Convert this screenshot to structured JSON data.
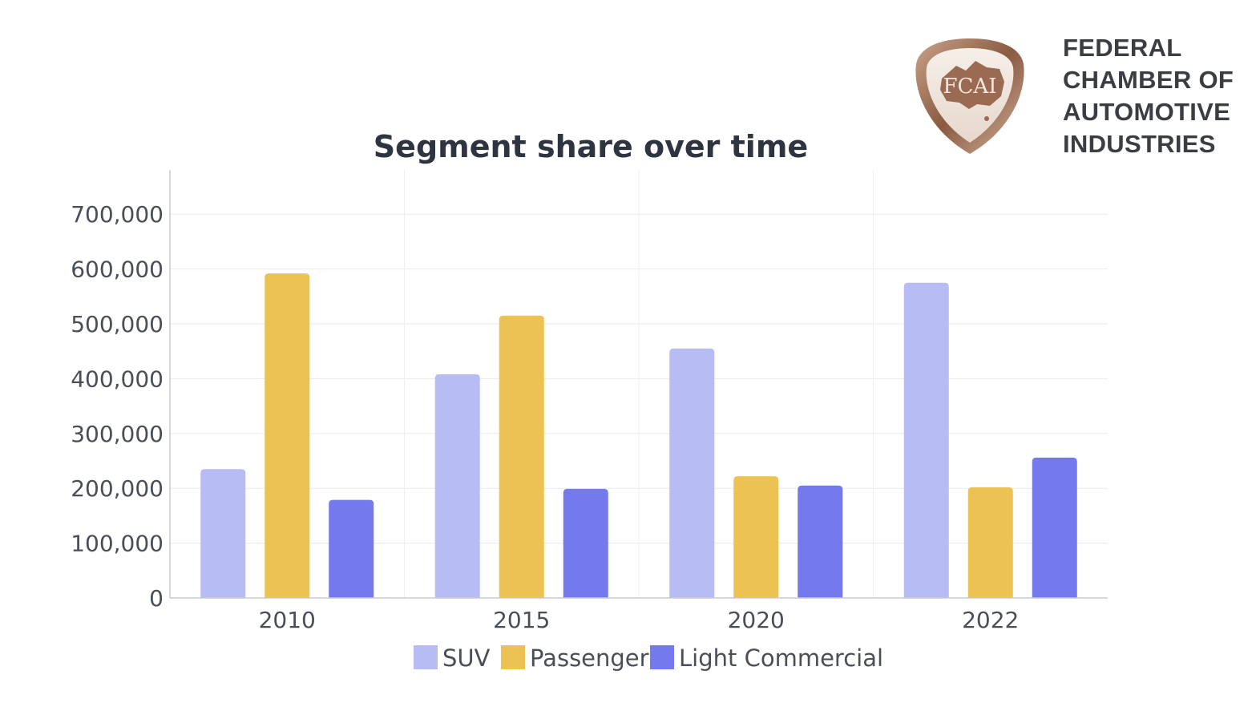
{
  "brand": {
    "emblem_text": "FCAI",
    "org_lines": [
      "FEDERAL",
      "CHAMBER OF",
      "AUTOMOTIVE",
      "INDUSTRIES"
    ]
  },
  "chart_data": {
    "type": "bar",
    "title": "Segment share over time",
    "xlabel": "",
    "ylabel": "",
    "categories": [
      "2010",
      "2015",
      "2020",
      "2022"
    ],
    "series": [
      {
        "name": "SUV",
        "color": "#b8bcf5",
        "values": [
          235000,
          408000,
          455000,
          575000
        ]
      },
      {
        "name": "Passenger",
        "color": "#ecc352",
        "values": [
          592000,
          515000,
          222000,
          202000
        ]
      },
      {
        "name": "Light Commercial",
        "color": "#7479ee",
        "values": [
          179000,
          199000,
          205000,
          256000
        ]
      }
    ],
    "yticks": [
      "0",
      "100,000",
      "200,000",
      "300,000",
      "400,000",
      "500,000",
      "600,000",
      "700,000"
    ],
    "ylim": [
      0,
      780000
    ],
    "grid": true,
    "legend_position": "bottom"
  }
}
